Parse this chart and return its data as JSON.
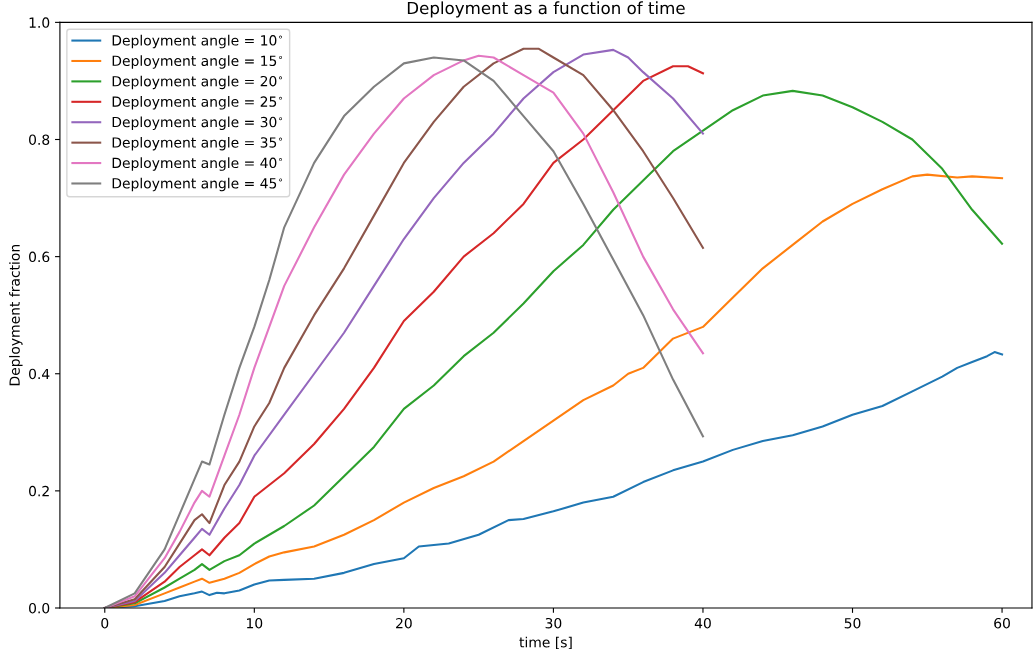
{
  "chart_data": {
    "type": "line",
    "title": "Deployment as a function of time",
    "xlabel": "time [s]",
    "ylabel": "Deployment fraction",
    "xlim": [
      -3,
      62
    ],
    "ylim": [
      0,
      1.0
    ],
    "xticks": [
      0,
      10,
      20,
      30,
      40,
      50,
      60
    ],
    "yticks": [
      {
        "value": 0,
        "label": "0.0"
      },
      0.2,
      0.4,
      0.6,
      0.8,
      {
        "value": 1.0,
        "label": "1.0"
      }
    ],
    "grid": false,
    "legend": "top left",
    "marker": "none",
    "line_style": "solid",
    "series": [
      {
        "name": "Deployment angle = 10$^{∘}$",
        "color": "#1f77b4",
        "x": [
          0,
          2,
          4,
          5,
          6,
          6.5,
          7,
          7.5,
          8,
          9,
          10,
          11,
          12,
          14,
          16,
          18,
          20,
          21,
          23,
          25,
          27,
          28,
          30,
          32,
          34,
          36,
          38,
          40,
          42,
          44,
          46,
          48,
          50,
          52,
          54,
          56,
          57,
          58,
          59,
          59.5,
          60
        ],
        "values": [
          0,
          0.003,
          0.012,
          0.02,
          0.025,
          0.028,
          0.022,
          0.026,
          0.025,
          0.03,
          0.04,
          0.047,
          0.048,
          0.05,
          0.06,
          0.075,
          0.085,
          0.105,
          0.11,
          0.125,
          0.15,
          0.152,
          0.165,
          0.18,
          0.19,
          0.215,
          0.235,
          0.25,
          0.27,
          0.285,
          0.295,
          0.31,
          0.33,
          0.345,
          0.37,
          0.395,
          0.41,
          0.42,
          0.43,
          0.437,
          0.433
        ]
      },
      {
        "name": "Deployment angle = 15$^{∘}$",
        "color": "#ff7f0e",
        "x": [
          0,
          2,
          4,
          5,
          6,
          6.5,
          7,
          8,
          9,
          10,
          11,
          12,
          14,
          16,
          18,
          20,
          22,
          24,
          26,
          28,
          30,
          32,
          34,
          35,
          36,
          38,
          40,
          42,
          44,
          46,
          48,
          50,
          52,
          54,
          55,
          57,
          58,
          60
        ],
        "values": [
          0,
          0.005,
          0.025,
          0.035,
          0.045,
          0.05,
          0.043,
          0.05,
          0.06,
          0.075,
          0.088,
          0.095,
          0.105,
          0.125,
          0.15,
          0.18,
          0.205,
          0.225,
          0.25,
          0.285,
          0.32,
          0.355,
          0.38,
          0.4,
          0.41,
          0.46,
          0.48,
          0.53,
          0.58,
          0.62,
          0.66,
          0.69,
          0.715,
          0.737,
          0.74,
          0.735,
          0.737,
          0.734
        ]
      },
      {
        "name": "Deployment angle = 20$^{∘}$",
        "color": "#2ca02c",
        "x": [
          0,
          2,
          4,
          5,
          6,
          6.5,
          7,
          8,
          9,
          10,
          12,
          14,
          16,
          18,
          20,
          22,
          24,
          26,
          28,
          30,
          32,
          34,
          36,
          38,
          40,
          42,
          44,
          46,
          48,
          50,
          52,
          54,
          56,
          58,
          60
        ],
        "values": [
          0,
          0.008,
          0.035,
          0.05,
          0.065,
          0.075,
          0.065,
          0.08,
          0.09,
          0.11,
          0.14,
          0.175,
          0.225,
          0.275,
          0.34,
          0.38,
          0.43,
          0.47,
          0.52,
          0.575,
          0.62,
          0.68,
          0.73,
          0.78,
          0.815,
          0.85,
          0.875,
          0.883,
          0.875,
          0.855,
          0.83,
          0.8,
          0.75,
          0.68,
          0.622
        ]
      },
      {
        "name": "Deployment angle = 25$^{∘}$",
        "color": "#d62728",
        "x": [
          0,
          2,
          4,
          5,
          6,
          6.5,
          7,
          8,
          9,
          10,
          12,
          14,
          16,
          18,
          20,
          22,
          24,
          26,
          28,
          30,
          32,
          34,
          36,
          38,
          39,
          40
        ],
        "values": [
          0,
          0.01,
          0.045,
          0.07,
          0.09,
          0.1,
          0.09,
          0.12,
          0.145,
          0.19,
          0.23,
          0.28,
          0.34,
          0.41,
          0.49,
          0.54,
          0.6,
          0.64,
          0.69,
          0.76,
          0.8,
          0.85,
          0.9,
          0.925,
          0.925,
          0.913
        ]
      },
      {
        "name": "Deployment angle = 30$^{∘}$",
        "color": "#9467bd",
        "x": [
          0,
          2,
          4,
          5,
          6,
          6.5,
          7,
          8,
          9,
          10,
          12,
          14,
          16,
          18,
          20,
          22,
          24,
          26,
          28,
          30,
          32,
          34,
          35,
          36,
          38,
          40
        ],
        "values": [
          0,
          0.012,
          0.06,
          0.09,
          0.12,
          0.135,
          0.125,
          0.17,
          0.21,
          0.26,
          0.33,
          0.4,
          0.47,
          0.55,
          0.63,
          0.7,
          0.76,
          0.81,
          0.87,
          0.915,
          0.945,
          0.953,
          0.94,
          0.915,
          0.87,
          0.81
        ]
      },
      {
        "name": "Deployment angle = 35$^{∘}$",
        "color": "#8c564b",
        "x": [
          0,
          2,
          4,
          5,
          6,
          6.5,
          7,
          8,
          9,
          10,
          11,
          12,
          14,
          16,
          18,
          20,
          22,
          24,
          26,
          28,
          29,
          30,
          32,
          34,
          36,
          38,
          40
        ],
        "values": [
          0,
          0.015,
          0.07,
          0.11,
          0.15,
          0.16,
          0.145,
          0.21,
          0.25,
          0.31,
          0.35,
          0.41,
          0.5,
          0.58,
          0.67,
          0.76,
          0.83,
          0.89,
          0.93,
          0.955,
          0.955,
          0.94,
          0.91,
          0.85,
          0.78,
          0.7,
          0.615
        ]
      },
      {
        "name": "Deployment angle = 40$^{∘}$",
        "color": "#e377c2",
        "x": [
          0,
          2,
          4,
          5,
          6,
          6.5,
          7,
          8,
          9,
          10,
          11,
          12,
          14,
          16,
          18,
          20,
          22,
          24,
          25,
          26,
          28,
          30,
          32,
          34,
          36,
          38,
          40
        ],
        "values": [
          0,
          0.02,
          0.085,
          0.13,
          0.18,
          0.2,
          0.19,
          0.26,
          0.33,
          0.41,
          0.48,
          0.55,
          0.65,
          0.74,
          0.81,
          0.87,
          0.91,
          0.935,
          0.943,
          0.94,
          0.91,
          0.88,
          0.81,
          0.71,
          0.6,
          0.51,
          0.435
        ]
      },
      {
        "name": "Deployment angle = 45$^{∘}$",
        "color": "#7f7f7f",
        "x": [
          0,
          2,
          4,
          5,
          6,
          6.5,
          7,
          8,
          9,
          10,
          11,
          12,
          14,
          16,
          18,
          20,
          22,
          24,
          26,
          28,
          30,
          32,
          34,
          36,
          38,
          40
        ],
        "values": [
          0,
          0.025,
          0.1,
          0.16,
          0.22,
          0.25,
          0.245,
          0.33,
          0.41,
          0.48,
          0.56,
          0.65,
          0.76,
          0.84,
          0.89,
          0.93,
          0.94,
          0.935,
          0.9,
          0.84,
          0.78,
          0.69,
          0.595,
          0.5,
          0.39,
          0.293
        ]
      }
    ]
  }
}
